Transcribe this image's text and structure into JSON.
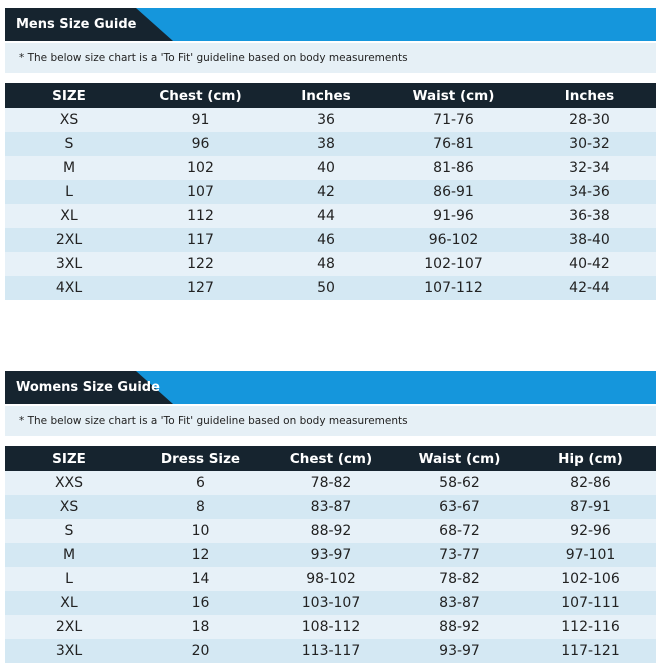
{
  "mens": {
    "title": "Mens Size Guide",
    "note": "* The below size chart is a 'To Fit' guideline based on body measurements",
    "headers": [
      "SIZE",
      "Chest (cm)",
      "Inches",
      "Waist (cm)",
      "Inches"
    ],
    "rows": [
      [
        "XS",
        "91",
        "36",
        "71-76",
        "28-30"
      ],
      [
        "S",
        "96",
        "38",
        "76-81",
        "30-32"
      ],
      [
        "M",
        "102",
        "40",
        "81-86",
        "32-34"
      ],
      [
        "L",
        "107",
        "42",
        "86-91",
        "34-36"
      ],
      [
        "XL",
        "112",
        "44",
        "91-96",
        "36-38"
      ],
      [
        "2XL",
        "117",
        "46",
        "96-102",
        "38-40"
      ],
      [
        "3XL",
        "122",
        "48",
        "102-107",
        "40-42"
      ],
      [
        "4XL",
        "127",
        "50",
        "107-112",
        "42-44"
      ]
    ]
  },
  "womens": {
    "title": "Womens Size Guide",
    "note": "* The below size chart is a 'To Fit' guideline based on body measurements",
    "headers": [
      "SIZE",
      "Dress Size",
      "Chest (cm)",
      "Waist (cm)",
      "Hip (cm)"
    ],
    "rows": [
      [
        "XXS",
        "6",
        "78-82",
        "58-62",
        "82-86"
      ],
      [
        "XS",
        "8",
        "83-87",
        "63-67",
        "87-91"
      ],
      [
        "S",
        "10",
        "88-92",
        "68-72",
        "92-96"
      ],
      [
        "M",
        "12",
        "93-97",
        "73-77",
        "97-101"
      ],
      [
        "L",
        "14",
        "98-102",
        "78-82",
        "102-106"
      ],
      [
        "XL",
        "16",
        "103-107",
        "83-87",
        "107-111"
      ],
      [
        "2XL",
        "18",
        "108-112",
        "88-92",
        "112-116"
      ],
      [
        "3XL",
        "20",
        "113-117",
        "93-97",
        "117-121"
      ]
    ]
  },
  "colors": {
    "header_dark": "#16242f",
    "header_accent": "#1596dc",
    "row_light": "#e7f1f8",
    "row_alt": "#d4e8f3"
  }
}
